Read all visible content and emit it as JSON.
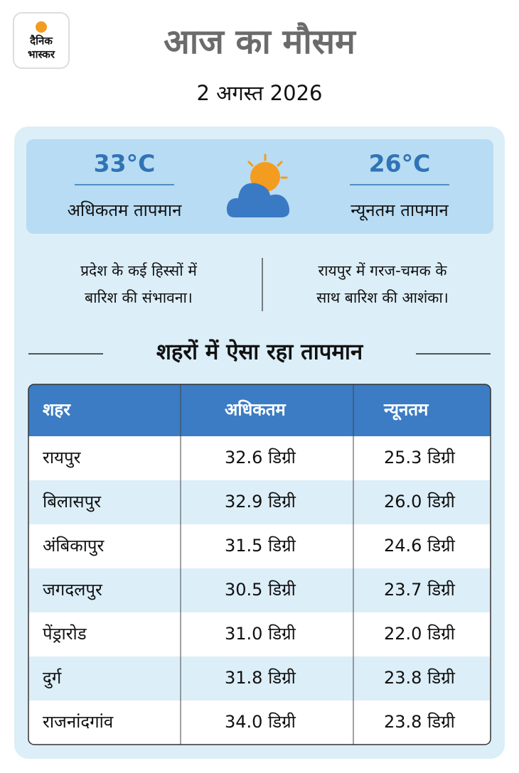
{
  "header": {
    "logo": [
      "दैनिक",
      "भास्कर"
    ],
    "title": "आज का मौसम",
    "date": "2 अगस्त 2026"
  },
  "summary": {
    "max": {
      "temp": "33°C",
      "label": "अधिकतम तापमान"
    },
    "min": {
      "temp": "26°C",
      "label": "न्यूनतम तापमान"
    }
  },
  "notes": [
    [
      "प्रदेश के कई हिस्सों में",
      "बारिश की संभावना।"
    ],
    [
      "रायपुर में गरज-चमक के",
      "साथ बारिश की आशंका।"
    ]
  ],
  "section_title": "शहरों में ऐसा रहा तापमान",
  "table": {
    "columns": [
      "शहर",
      "अधिकतम",
      "न्यूनतम"
    ],
    "rows": [
      [
        "रायपुर",
        "32.6 डिग्री",
        "25.3 डिग्री"
      ],
      [
        "बिलासपुर",
        "32.9 डिग्री",
        "26.0 डिग्री"
      ],
      [
        "अंबिकापुर",
        "31.5 डिग्री",
        "24.6 डिग्री"
      ],
      [
        "जगदलपुर",
        "30.5 डिग्री",
        "23.7 डिग्री"
      ],
      [
        "पेंड्रारोड",
        "31.0 डिग्री",
        "22.0 डिग्री"
      ],
      [
        "दुर्ग",
        "31.8 डिग्री",
        "23.8 डिग्री"
      ],
      [
        "राजनांदगांव",
        "34.0 डिग्री",
        "23.8 डिग्री"
      ]
    ]
  }
}
